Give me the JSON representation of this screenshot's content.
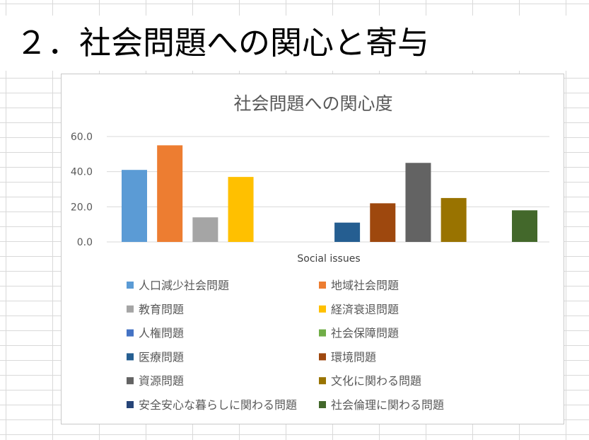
{
  "page": {
    "title": "２．社会問題への関心と寄与"
  },
  "colors": {
    "grid": "#d9d9d9",
    "chart_border": "#c8c8c8",
    "axis_text": "#595959",
    "title_text": "#595959"
  },
  "chart_data": {
    "type": "bar",
    "title": "社会問題への関心度",
    "xlabel": "Social issues",
    "ylabel": "",
    "ylim": [
      0,
      60
    ],
    "yticks": [
      0,
      20,
      40,
      60
    ],
    "ytick_labels": [
      "0.0",
      "20.0",
      "40.0",
      "60.0"
    ],
    "grid": true,
    "legend_position": "bottom",
    "categories": [
      "Social issues"
    ],
    "series": [
      {
        "name": "人口減少社会問題",
        "value": 41,
        "color": "#5b9bd5"
      },
      {
        "name": "地域社会問題",
        "value": 55,
        "color": "#ed7d31"
      },
      {
        "name": "教育問題",
        "value": 14,
        "color": "#a5a5a5"
      },
      {
        "name": "経済衰退問題",
        "value": 37,
        "color": "#ffc000"
      },
      {
        "name": "人権問題",
        "value": 0,
        "color": "#4472c4"
      },
      {
        "name": "社会保障問題",
        "value": 0,
        "color": "#70ad47"
      },
      {
        "name": "医療問題",
        "value": 11,
        "color": "#255e91"
      },
      {
        "name": "環境問題",
        "value": 22,
        "color": "#9e480e"
      },
      {
        "name": "資源問題",
        "value": 45,
        "color": "#636363"
      },
      {
        "name": "文化に関わる問題",
        "value": 25,
        "color": "#997300"
      },
      {
        "name": "安全安心な暮らしに関わる問題",
        "value": 0,
        "color": "#264478"
      },
      {
        "name": "社会倫理に関わる問題",
        "value": 18,
        "color": "#43682b"
      }
    ]
  }
}
